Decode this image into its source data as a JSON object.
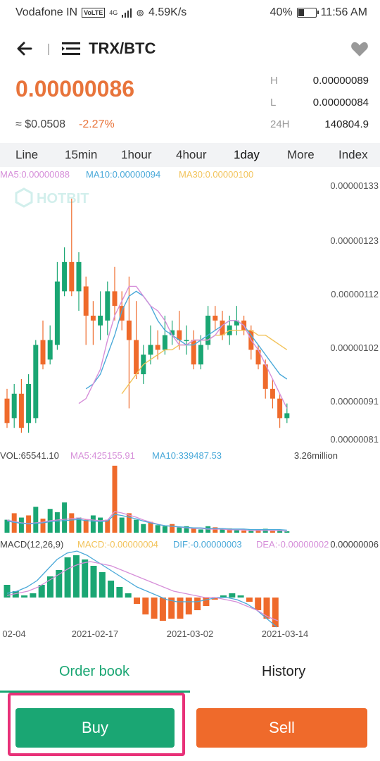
{
  "status_bar": {
    "carrier": "Vodafone IN",
    "volte": "VoLTE",
    "net": "4G",
    "speed": "4.59K/s",
    "battery": "40%",
    "battery_level": 0.4,
    "time": "11:56 AM"
  },
  "header": {
    "pair": "TRX/BTC",
    "back_icon": "arrow-left-icon",
    "menu_icon": "menu-icon",
    "favorite_icon": "heart-icon"
  },
  "ticker": {
    "price": "0.00000086",
    "approx_usd": "≈ $0.0508",
    "change": "-2.27%",
    "high_label": "H",
    "high": "0.00000089",
    "low_label": "L",
    "low": "0.00000084",
    "vol_label": "24H",
    "vol": "140804.9"
  },
  "timeframe_tabs": [
    "Line",
    "15min",
    "1hour",
    "4hour",
    "1day",
    "More",
    "Index"
  ],
  "active_timeframe": "1day",
  "colors": {
    "up": "#1aa673",
    "down": "#ef6a2b",
    "ma5": "#d68fd9",
    "ma10": "#4aa9d9",
    "ma30": "#f2c35a",
    "accent_price": "#e8743b"
  },
  "chart_data": [
    {
      "type": "candlestick",
      "legend": {
        "ma5": "MA5:0.00000088",
        "ma10": "MA10:0.00000094",
        "ma30": "MA30:0.00000100"
      },
      "watermark": "HOTBIT",
      "y_ticks": [
        "0.00000133",
        "0.00000123",
        "0.00000112",
        "0.00000102",
        "0.00000091",
        "0.00000081"
      ],
      "ylim": [
        8.1e-07,
        1.33e-06
      ],
      "candles": [
        [
          9e-07,
          8.5e-07,
          9.2e-07,
          8.4e-07
        ],
        [
          8.6e-07,
          9.1e-07,
          9.3e-07,
          8.4e-07
        ],
        [
          9.1e-07,
          8.4e-07,
          9.4e-07,
          8.3e-07
        ],
        [
          8.5e-07,
          9.3e-07,
          9.5e-07,
          8.3e-07
        ],
        [
          8.6e-07,
          1.01e-06,
          1.02e-06,
          8.5e-07
        ],
        [
          1.02e-06,
          9.7e-07,
          1.06e-06,
          9.6e-07
        ],
        [
          9.8e-07,
          1.02e-06,
          1.05e-06,
          9.7e-07
        ],
        [
          1.01e-06,
          1.14e-06,
          1.18e-06,
          1e-06
        ],
        [
          1.12e-06,
          1.18e-06,
          1.21e-06,
          1.11e-06
        ],
        [
          1.18e-06,
          1.12e-06,
          1.31e-06,
          1.11e-06
        ],
        [
          1.12e-06,
          1.18e-06,
          1.2e-06,
          1.08e-06
        ],
        [
          1.13e-06,
          1.07e-06,
          1.15e-06,
          1.01e-06
        ],
        [
          1.07e-06,
          1.06e-06,
          1.1e-06,
          1.01e-06
        ],
        [
          1.05e-06,
          1.07e-06,
          1.12e-06,
          1.02e-06
        ],
        [
          1.06e-06,
          1.12e-06,
          1.14e-06,
          1.03e-06
        ],
        [
          1.12e-06,
          1.09e-06,
          1.17e-06,
          1.06e-06
        ],
        [
          1.09e-06,
          1.06e-06,
          1.12e-06,
          1.04e-06
        ],
        [
          1.06e-06,
          1.02e-06,
          1.15e-06,
          8.8e-07
        ],
        [
          1.02e-06,
          9.5e-07,
          1.1e-06,
          9.4e-07
        ],
        [
          9.5e-07,
          9.9e-07,
          1.01e-06,
          9.3e-07
        ],
        [
          9.9e-07,
          1.01e-06,
          1.05e-06,
          9.7e-07
        ],
        [
          1.01e-06,
          1e-06,
          1.04e-06,
          9.8e-07
        ],
        [
          1e-06,
          1.03e-06,
          1.07e-06,
          9.9e-07
        ],
        [
          1.03e-06,
          1.04e-06,
          1.06e-06,
          1.01e-06
        ],
        [
          1.04e-06,
          1.02e-06,
          1.08e-06,
          1e-06
        ],
        [
          1.02e-06,
          1.02e-06,
          1.05e-06,
          9.9e-07
        ],
        [
          1.02e-06,
          9.7e-07,
          1.04e-06,
          9.6e-07
        ],
        [
          9.7e-07,
          1.01e-06,
          1.03e-06,
          9.6e-07
        ],
        [
          1.01e-06,
          1.07e-06,
          1.09e-06,
          1e-06
        ],
        [
          1.07e-06,
          1.06e-06,
          1.09e-06,
          1.04e-06
        ],
        [
          1.06e-06,
          1.03e-06,
          1.08e-06,
          1.02e-06
        ],
        [
          1.03e-06,
          1.05e-06,
          1.07e-06,
          1.01e-06
        ],
        [
          1.05e-06,
          1.06e-06,
          1.09e-06,
          1.03e-06
        ],
        [
          1.06e-06,
          1.04e-06,
          1.07e-06,
          1.03e-06
        ],
        [
          1.04e-06,
          1e-06,
          1.05e-06,
          9.8e-07
        ],
        [
          1e-06,
          9.7e-07,
          1.01e-06,
          9.6e-07
        ],
        [
          9.7e-07,
          9.2e-07,
          9.8e-07,
          9e-07
        ],
        [
          9.2e-07,
          9e-07,
          9.4e-07,
          8.8e-07
        ],
        [
          9e-07,
          8.6e-07,
          9.1e-07,
          8.4e-07
        ],
        [
          8.6e-07,
          8.7e-07,
          8.9e-07,
          8.5e-07
        ]
      ],
      "ma5": [
        8.9e-07,
        9e-07,
        9.3e-07,
        9.6e-07,
        1.02e-06,
        1.07e-06,
        1.1e-06,
        1.13e-06,
        1.13e-06,
        1.11e-06,
        1.09e-06,
        1.08e-06,
        1.06e-06,
        1.03e-06,
        1.01e-06,
        1.01e-06,
        1.02e-06,
        1.02e-06,
        1.02e-06,
        1.03e-06,
        1.05e-06,
        1.06e-06,
        1.06e-06,
        1.05e-06,
        1.02e-06,
        1e-06,
        9.7e-07,
        9.4e-07,
        9.1e-07,
        8.8e-07
      ],
      "ma10": [
        9.2e-07,
        9.3e-07,
        9.5e-07,
        9.9e-07,
        1.03e-06,
        1.08e-06,
        1.11e-06,
        1.12e-06,
        1.11e-06,
        1.09e-06,
        1.06e-06,
        1.04e-06,
        1.03e-06,
        1.02e-06,
        1.01e-06,
        1.01e-06,
        1.02e-06,
        1.03e-06,
        1.04e-06,
        1.05e-06,
        1.06e-06,
        1.06e-06,
        1.05e-06,
        1.03e-06,
        1.01e-06,
        9.9e-07,
        9.7e-07,
        9.5e-07,
        9.4e-07
      ],
      "ma30": [
        9.1e-07,
        9.3e-07,
        9.5e-07,
        9.7e-07,
        9.8e-07,
        9.9e-07,
        1e-06,
        1e-06,
        1.01e-06,
        1.01e-06,
        1.02e-06,
        1.02e-06,
        1.02e-06,
        1.03e-06,
        1.03e-06,
        1.04e-06,
        1.04e-06,
        1.04e-06,
        1.04e-06,
        1.03e-06,
        1.03e-06,
        1.02e-06,
        1.01e-06,
        1e-06
      ]
    },
    {
      "type": "bar",
      "legend": {
        "vol": "VOL:65541.10",
        "ma5": "MA5:425155.91",
        "ma10": "MA10:339487.53"
      },
      "max_label": "3.26million",
      "ylim": [
        0,
        3260000
      ],
      "values": [
        600000,
        900000,
        700000,
        800000,
        1200000,
        650000,
        1100000,
        950000,
        1400000,
        900000,
        700000,
        600000,
        800000,
        700000,
        600000,
        3100000,
        700000,
        900000,
        600000,
        400000,
        500000,
        350000,
        300000,
        400000,
        250000,
        300000,
        200000,
        150000,
        300000,
        250000,
        150000,
        200000,
        150000,
        100000,
        100000,
        150000,
        180000,
        90000,
        120000,
        65541
      ],
      "up_flags": [
        true,
        false,
        true,
        false,
        true,
        false,
        true,
        true,
        true,
        false,
        true,
        false,
        true,
        true,
        false,
        false,
        true,
        false,
        true,
        true,
        false,
        true,
        true,
        false,
        true,
        true,
        false,
        true,
        true,
        false,
        true,
        false,
        true,
        false,
        true,
        false,
        true,
        false,
        true,
        true
      ]
    },
    {
      "type": "bar",
      "legend": {
        "label": "MACD(12,26,9)",
        "macd": "MACD:-0.00000004",
        "dif": "DIF:-0.00000003",
        "dea": "DEA:-0.00000002"
      },
      "axis_label": "0.00000006",
      "values": [
        0.6,
        0.3,
        0.1,
        0.2,
        0.6,
        1.0,
        1.3,
        1.9,
        2.0,
        1.8,
        1.5,
        1.2,
        0.8,
        0.5,
        0.2,
        -0.3,
        -0.8,
        -1.0,
        -1.1,
        -1.0,
        -1.0,
        -0.8,
        -0.6,
        -0.4,
        -0.1,
        0.1,
        0.2,
        0.1,
        -0.2,
        -0.6,
        -1.0,
        -1.4
      ],
      "dif": [
        0.2,
        0.3,
        0.5,
        0.8,
        1.3,
        1.8,
        2.1,
        2.2,
        2.0,
        1.7,
        1.4,
        1.1,
        0.8,
        0.5,
        0.3,
        0.1,
        -0.1,
        -0.2,
        -0.2,
        -0.2,
        -0.1,
        0.0,
        0.0,
        -0.1,
        -0.3,
        -0.6,
        -1.0,
        -1.4
      ],
      "dea": [
        0.1,
        0.2,
        0.3,
        0.5,
        0.8,
        1.1,
        1.4,
        1.6,
        1.7,
        1.6,
        1.5,
        1.3,
        1.1,
        0.9,
        0.7,
        0.5,
        0.3,
        0.2,
        0.1,
        0.0,
        0.0,
        -0.1,
        -0.2,
        -0.4,
        -0.6,
        -0.9,
        -1.1
      ],
      "x_ticks": [
        "02-04",
        "2021-02-17",
        "2021-03-02",
        "2021-03-14"
      ]
    }
  ],
  "order_tabs": {
    "order_book": "Order book",
    "history": "History",
    "active": "Order book"
  },
  "actions": {
    "buy": "Buy",
    "sell": "Sell"
  }
}
